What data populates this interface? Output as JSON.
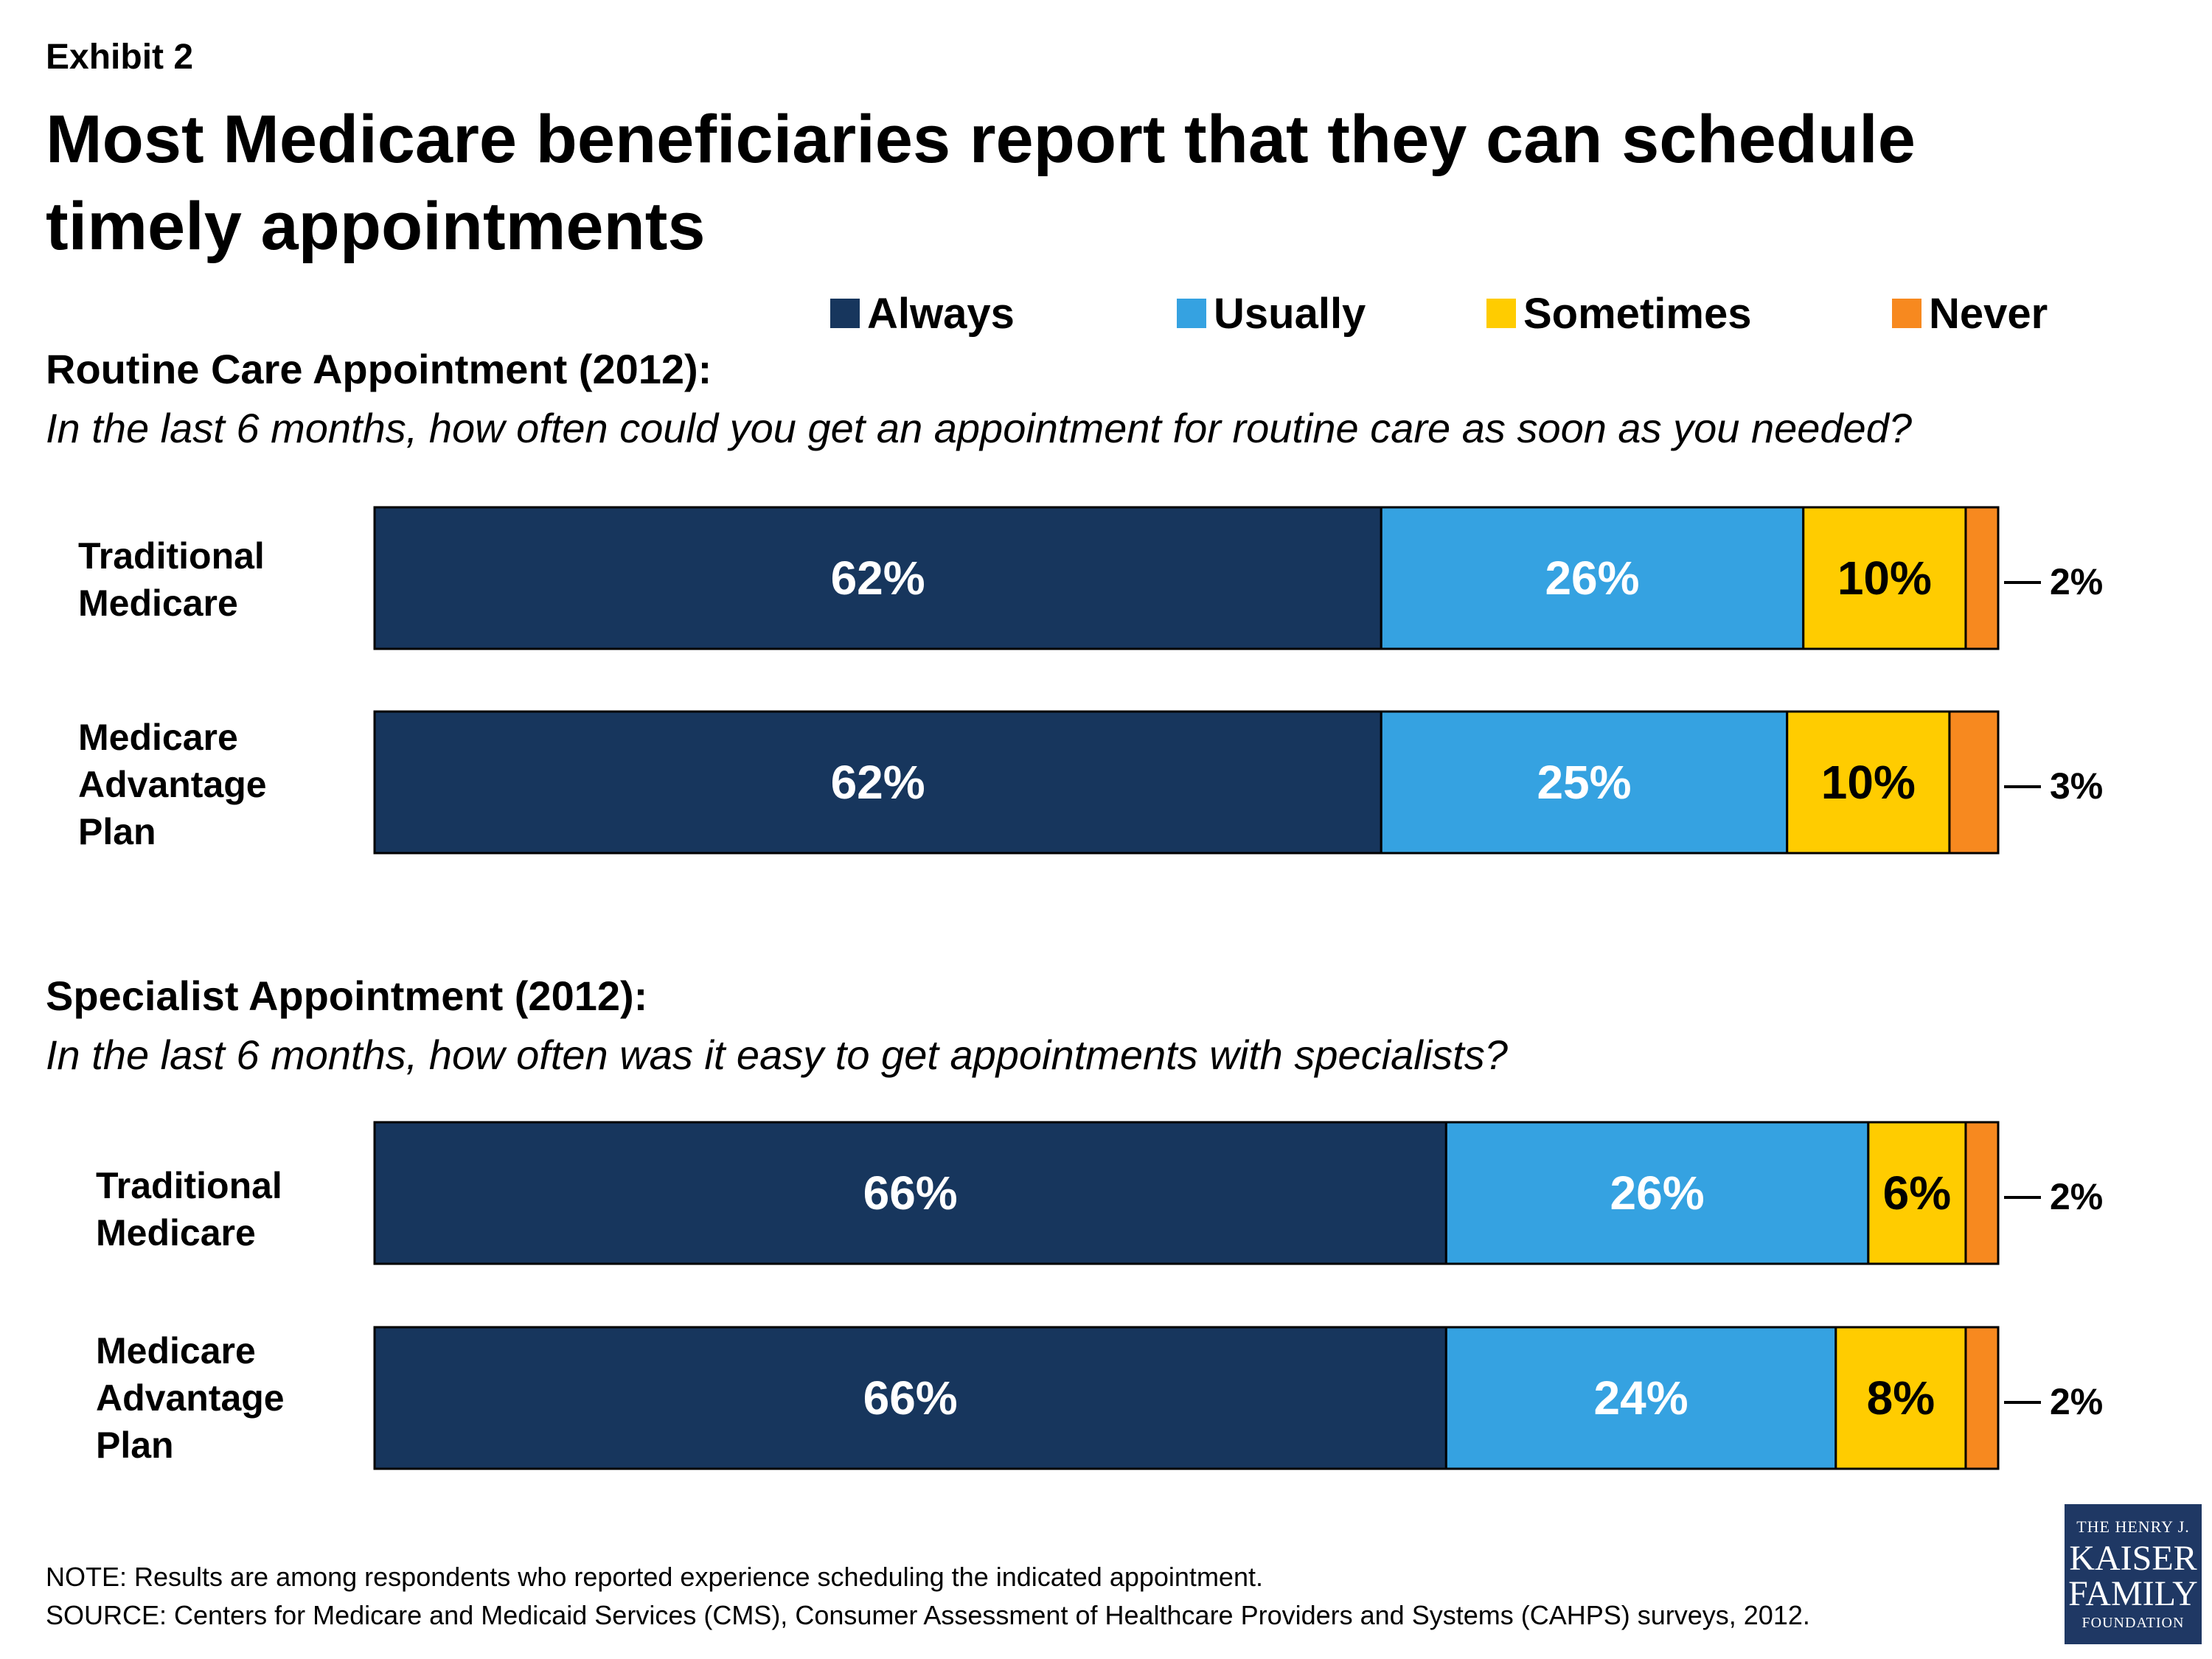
{
  "exhibit_label": "Exhibit 2",
  "title": "Most Medicare beneficiaries report that they can schedule timely appointments",
  "legend": [
    {
      "label": "Always",
      "color": "#17365d"
    },
    {
      "label": "Usually",
      "color": "#35a2e1"
    },
    {
      "label": "Sometimes",
      "color": "#ffcc00"
    },
    {
      "label": "Never",
      "color": "#f7891f"
    }
  ],
  "chart_data": [
    {
      "type": "bar",
      "orientation": "horizontal-stacked",
      "title": "Routine Care Appointment (2012):",
      "subtitle": "In the last 6 months, how often could you get an appointment for routine care as soon as you needed?",
      "categories": [
        [
          "Traditional",
          "Medicare"
        ],
        [
          "Medicare",
          "Advantage",
          "Plan"
        ]
      ],
      "series": [
        {
          "name": "Always",
          "color": "#17365d",
          "values": [
            62,
            62
          ]
        },
        {
          "name": "Usually",
          "color": "#35a2e1",
          "values": [
            26,
            25
          ]
        },
        {
          "name": "Sometimes",
          "color": "#ffcc00",
          "values": [
            10,
            10
          ]
        },
        {
          "name": "Never",
          "color": "#f7891f",
          "values": [
            2,
            3
          ]
        }
      ],
      "data_labels": [
        [
          "62%",
          "26%",
          "10%",
          "2%"
        ],
        [
          "62%",
          "25%",
          "10%",
          "3%"
        ]
      ],
      "xlim": [
        0,
        100
      ]
    },
    {
      "type": "bar",
      "orientation": "horizontal-stacked",
      "title": "Specialist Appointment (2012):",
      "subtitle": "In the last 6 months, how often was it easy to get appointments with specialists?",
      "categories": [
        [
          "Traditional",
          "Medicare"
        ],
        [
          "Medicare",
          "Advantage",
          "Plan"
        ]
      ],
      "series": [
        {
          "name": "Always",
          "color": "#17365d",
          "values": [
            66,
            66
          ]
        },
        {
          "name": "Usually",
          "color": "#35a2e1",
          "values": [
            26,
            24
          ]
        },
        {
          "name": "Sometimes",
          "color": "#ffcc00",
          "values": [
            6,
            8
          ]
        },
        {
          "name": "Never",
          "color": "#f7891f",
          "values": [
            2,
            2
          ]
        }
      ],
      "data_labels": [
        [
          "66%",
          "26%",
          "6%",
          "2%"
        ],
        [
          "66%",
          "24%",
          "8%",
          "2%"
        ]
      ],
      "xlim": [
        0,
        100
      ]
    }
  ],
  "notes": {
    "note": "NOTE: Results are among respondents who reported experience scheduling the indicated appointment.",
    "source": "SOURCE: Centers for Medicare and Medicaid Services (CMS), Consumer Assessment of Healthcare Providers and Systems (CAHPS) surveys, 2012."
  },
  "logo": {
    "line1": "THE HENRY J.",
    "line2": "KAISER",
    "line3": "FAMILY",
    "line4": "FOUNDATION"
  }
}
